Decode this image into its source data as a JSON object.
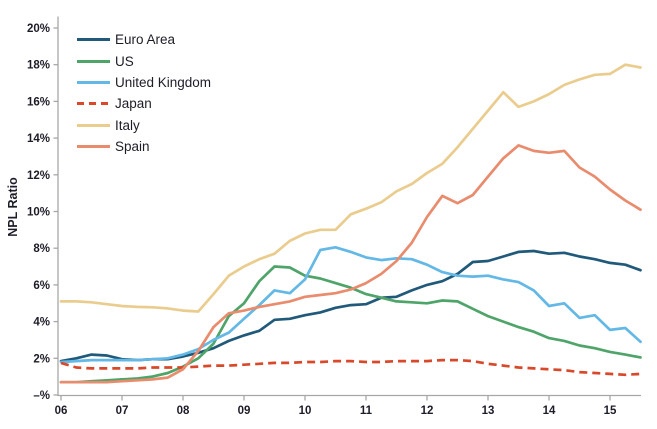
{
  "figure": {
    "title": "",
    "ylabel": "NPL Ratio",
    "background": "#ffffff",
    "axis_color": "#a7a7a7",
    "text_color": "#1c1c28"
  },
  "chart_data": {
    "type": "line",
    "title": "",
    "xlabel": "",
    "ylabel": "NPL Ratio",
    "grid": false,
    "legend_position": "top-left",
    "ylim": [
      0,
      20
    ],
    "y_tick_step": 2,
    "y_tick_labels": [
      "–%",
      "2%",
      "4%",
      "6%",
      "8%",
      "10%",
      "12%",
      "14%",
      "16%",
      "18%",
      "20%"
    ],
    "x_tick_labels": [
      "06",
      "07",
      "08",
      "09",
      "10",
      "11",
      "12",
      "13",
      "14",
      "15"
    ],
    "x_range": [
      "2006Q1",
      "2015Q3"
    ],
    "x_frequency": "quarterly",
    "series": [
      {
        "id": "euro-area",
        "name": "Euro Area",
        "color": "#20597a",
        "dashed": false,
        "values": [
          1.85,
          2.0,
          2.2,
          2.15,
          1.95,
          1.9,
          1.95,
          1.95,
          2.1,
          2.3,
          2.55,
          2.95,
          3.25,
          3.5,
          4.1,
          4.15,
          4.35,
          4.5,
          4.75,
          4.9,
          4.95,
          5.3,
          5.35,
          5.7,
          6.0,
          6.2,
          6.6,
          7.25,
          7.3,
          7.55,
          7.8,
          7.85,
          7.7,
          7.75,
          7.55,
          7.4,
          7.2,
          7.1,
          6.8
        ]
      },
      {
        "id": "us",
        "name": "US",
        "color": "#4fa46a",
        "dashed": false,
        "values": [
          0.7,
          0.7,
          0.75,
          0.8,
          0.85,
          0.9,
          1.0,
          1.2,
          1.55,
          2.0,
          2.8,
          4.3,
          5.0,
          6.2,
          7.0,
          6.95,
          6.5,
          6.35,
          6.1,
          5.85,
          5.5,
          5.3,
          5.1,
          5.05,
          5.0,
          5.15,
          5.1,
          4.7,
          4.3,
          4.0,
          3.7,
          3.45,
          3.1,
          2.95,
          2.7,
          2.55,
          2.35,
          2.2,
          2.05
        ]
      },
      {
        "id": "united-kingdom",
        "name": "United Kingdom",
        "color": "#63b8e6",
        "dashed": false,
        "values": [
          1.8,
          1.85,
          1.9,
          1.9,
          1.9,
          1.9,
          1.95,
          2.0,
          2.2,
          2.5,
          3.0,
          3.4,
          4.15,
          4.9,
          5.7,
          5.55,
          6.3,
          7.9,
          8.05,
          7.8,
          7.5,
          7.35,
          7.45,
          7.4,
          7.1,
          6.7,
          6.5,
          6.45,
          6.5,
          6.3,
          6.15,
          5.7,
          4.85,
          5.0,
          4.2,
          4.35,
          3.55,
          3.65,
          2.9
        ]
      },
      {
        "id": "japan",
        "name": "Japan",
        "color": "#d7492a",
        "dashed": true,
        "values": [
          1.75,
          1.5,
          1.45,
          1.45,
          1.45,
          1.45,
          1.5,
          1.5,
          1.5,
          1.55,
          1.6,
          1.6,
          1.65,
          1.7,
          1.75,
          1.75,
          1.8,
          1.8,
          1.85,
          1.85,
          1.8,
          1.8,
          1.85,
          1.85,
          1.85,
          1.9,
          1.9,
          1.85,
          1.7,
          1.6,
          1.5,
          1.45,
          1.4,
          1.35,
          1.25,
          1.2,
          1.15,
          1.1,
          1.15
        ]
      },
      {
        "id": "italy",
        "name": "Italy",
        "color": "#eacd8e",
        "dashed": false,
        "values": [
          5.1,
          5.1,
          5.05,
          4.95,
          4.85,
          4.8,
          4.78,
          4.72,
          4.6,
          4.55,
          5.5,
          6.5,
          7.0,
          7.4,
          7.7,
          8.4,
          8.8,
          9.0,
          9.0,
          9.85,
          10.15,
          10.5,
          11.1,
          11.5,
          12.1,
          12.6,
          13.5,
          14.5,
          15.5,
          16.5,
          15.7,
          16.0,
          16.4,
          16.9,
          17.2,
          17.45,
          17.5,
          18.0,
          17.85
        ]
      },
      {
        "id": "spain",
        "name": "Spain",
        "color": "#e98b6d",
        "dashed": false,
        "values": [
          0.7,
          0.7,
          0.7,
          0.7,
          0.75,
          0.8,
          0.85,
          0.95,
          1.4,
          2.4,
          3.7,
          4.45,
          4.6,
          4.8,
          4.95,
          5.1,
          5.35,
          5.45,
          5.55,
          5.75,
          6.1,
          6.6,
          7.3,
          8.3,
          9.7,
          10.85,
          10.45,
          10.9,
          11.9,
          12.9,
          13.6,
          13.3,
          13.2,
          13.3,
          12.4,
          11.9,
          11.2,
          10.6,
          10.1
        ]
      }
    ]
  }
}
